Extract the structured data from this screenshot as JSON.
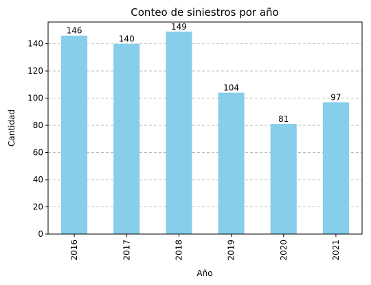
{
  "chart_data": {
    "type": "bar",
    "title": "Conteo de siniestros por año",
    "xlabel": "Año",
    "ylabel": "Cantidad",
    "categories": [
      "2016",
      "2017",
      "2018",
      "2019",
      "2020",
      "2021"
    ],
    "values": [
      146,
      140,
      149,
      104,
      81,
      97
    ],
    "ylim": [
      0,
      156
    ],
    "yticks": [
      0,
      20,
      40,
      60,
      80,
      100,
      120,
      140
    ],
    "grid": "y-dashed",
    "bar_color": "#87ceeb"
  }
}
